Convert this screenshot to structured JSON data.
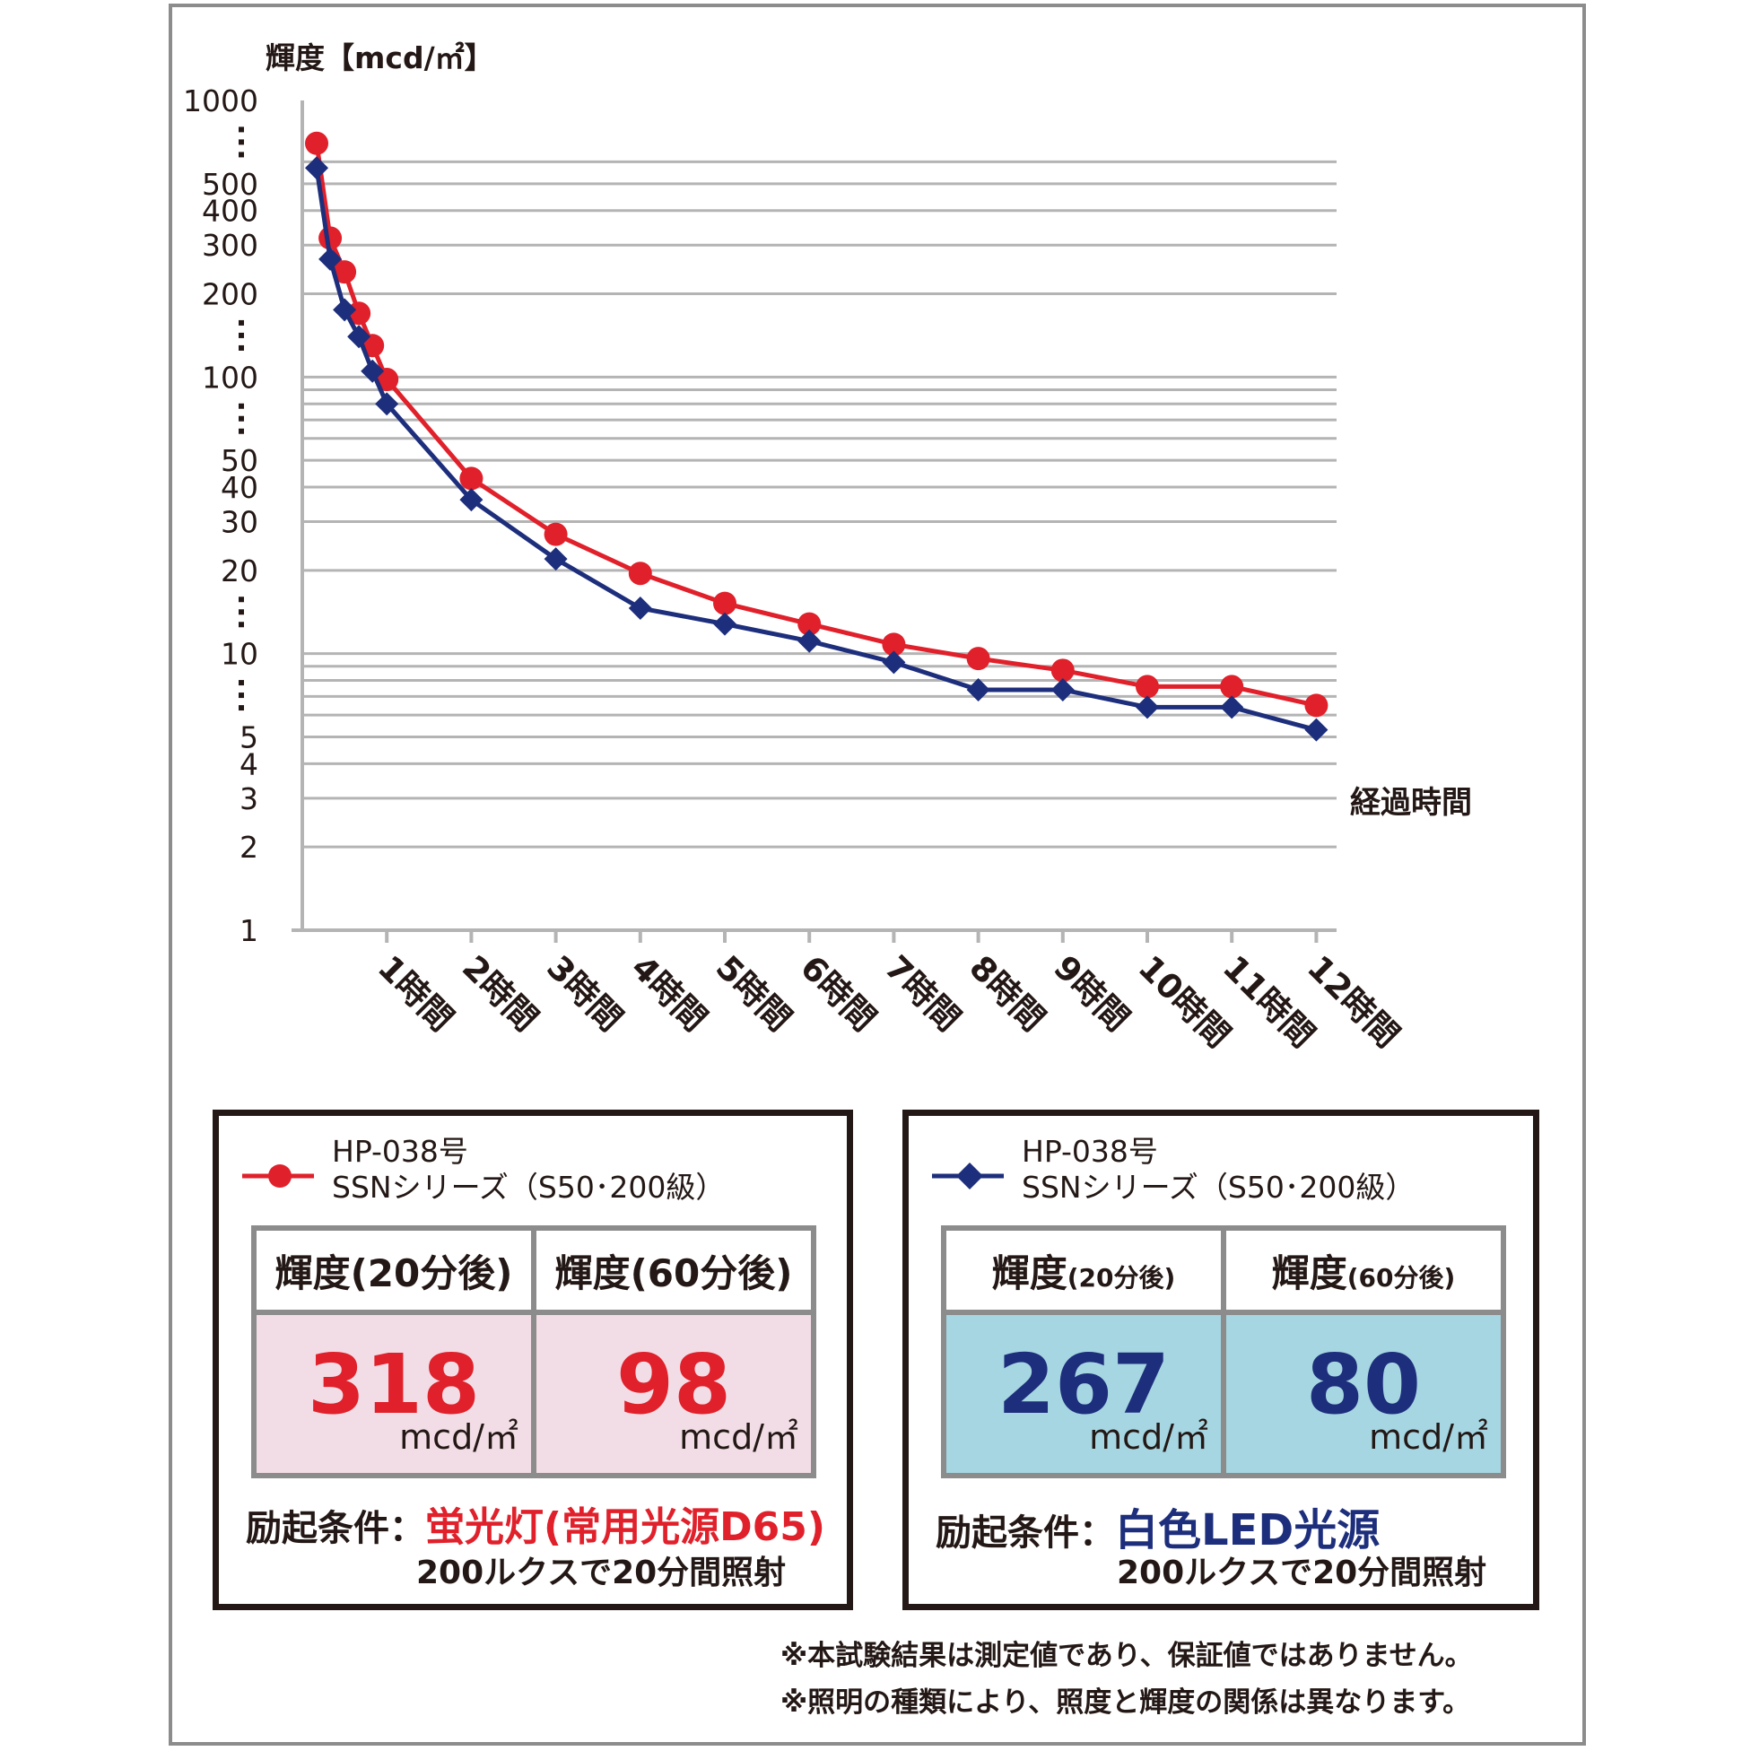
{
  "chart_data": {
    "type": "line",
    "ylabel": "輝度【mcd/㎡】",
    "xlabel": "経過時間",
    "yscale": "log",
    "ylim": [
      1,
      1000
    ],
    "grid": true,
    "y_tick_labels": [
      "1000",
      "500",
      "400",
      "300",
      "200",
      "100",
      "50",
      "40",
      "30",
      "20",
      "10",
      "5",
      "4",
      "3",
      "2",
      "1"
    ],
    "x_tick_labels": [
      "1時間",
      "2時間",
      "3時間",
      "4時間",
      "5時間",
      "6時間",
      "7時間",
      "8時間",
      "9時間",
      "10時間",
      "11時間",
      "12時間"
    ],
    "series": [
      {
        "name": "HP-038号 SSNシリーズ（S50･200級）",
        "light_source": "蛍光灯(常用光源D65)",
        "color": "#e0202a",
        "marker": "circle",
        "points": [
          [
            0.17,
            700
          ],
          [
            0.33,
            318
          ],
          [
            0.5,
            240
          ],
          [
            0.67,
            170
          ],
          [
            0.83,
            130
          ],
          [
            1.0,
            98
          ],
          [
            2.0,
            43
          ],
          [
            3.0,
            27
          ],
          [
            4.0,
            19.5
          ],
          [
            5.0,
            15.2
          ],
          [
            6.0,
            12.8
          ],
          [
            7.0,
            10.8
          ],
          [
            8.0,
            9.6
          ],
          [
            9.0,
            8.7
          ],
          [
            10.0,
            7.6
          ],
          [
            11.0,
            7.6
          ],
          [
            12.0,
            6.5
          ]
        ]
      },
      {
        "name": "HP-038号 SSNシリーズ（S50･200級）",
        "light_source": "白色LED光源",
        "color": "#1d2e7c",
        "marker": "diamond",
        "points": [
          [
            0.17,
            570
          ],
          [
            0.33,
            267
          ],
          [
            0.5,
            175
          ],
          [
            0.67,
            140
          ],
          [
            0.83,
            105
          ],
          [
            1.0,
            80
          ],
          [
            2.0,
            36
          ],
          [
            3.0,
            22
          ],
          [
            4.0,
            14.6
          ],
          [
            5.0,
            12.8
          ],
          [
            6.0,
            11.1
          ],
          [
            7.0,
            9.3
          ],
          [
            8.0,
            7.4
          ],
          [
            9.0,
            7.4
          ],
          [
            10.0,
            6.4
          ],
          [
            11.0,
            6.4
          ],
          [
            12.0,
            5.3
          ]
        ]
      }
    ]
  },
  "panels": {
    "left": {
      "legend_line1": "HP-038号",
      "legend_line2": "SSNシリーズ（S50･200級）",
      "header_20_main": "輝度(20分後)",
      "header_60_main": "輝度(60分後)",
      "value_20": "318",
      "value_60": "98",
      "unit": "mcd/㎡",
      "cond_label": "励起条件：",
      "cond_source": "蛍光灯(常用光源D65)",
      "cond_detail": "200ルクスで20分間照射"
    },
    "right": {
      "legend_line1": "HP-038号",
      "legend_line2": "SSNシリーズ（S50･200級）",
      "header_20_main": "輝度",
      "header_20_small": "(20分後)",
      "header_60_main": "輝度",
      "header_60_small": "(60分後)",
      "value_20": "267",
      "value_60": "80",
      "unit": "mcd/㎡",
      "cond_label": "励起条件：",
      "cond_source": "白色LED光源",
      "cond_detail": "200ルクスで20分間照射"
    }
  },
  "notes": [
    "※本試験結果は測定値であり、保証値ではありません。",
    "※照明の種類により、照度と輝度の関係は異なります。"
  ],
  "colors": {
    "red": "#e0202a",
    "navy": "#1d2e7c",
    "pink_fill": "#f2dde6",
    "blue_fill": "#a6d6e2",
    "grid": "#b4b4b4"
  }
}
